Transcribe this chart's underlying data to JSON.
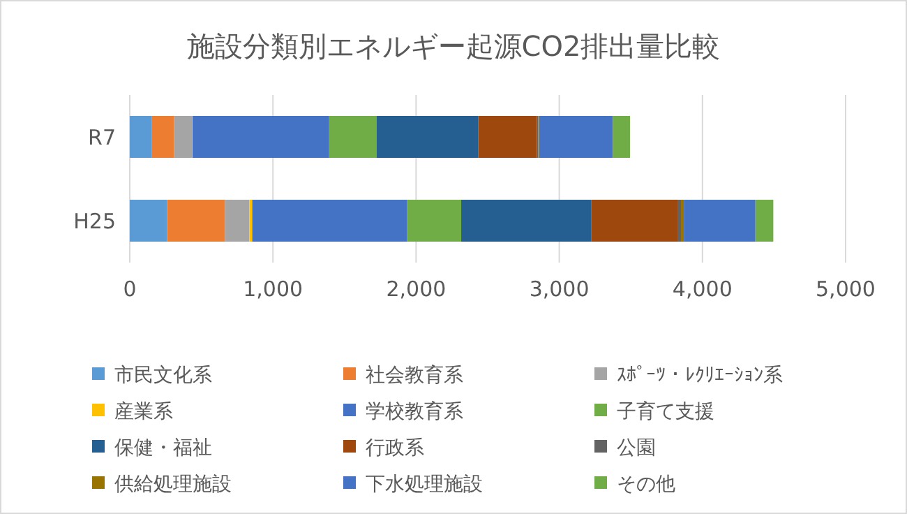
{
  "chart_data": {
    "type": "bar",
    "title": "施設分類別エネルギー起源CO2排出量比較",
    "orientation": "horizontal",
    "stacked": true,
    "categories": [
      "R7",
      "H25"
    ],
    "series": [
      {
        "name": "市民文化系",
        "color": "#5b9bd5",
        "values": [
          155,
          260
        ]
      },
      {
        "name": "社会教育系",
        "color": "#ed7d31",
        "values": [
          155,
          405
        ]
      },
      {
        "name": "ｽﾎﾟｰﾂ・ﾚｸﾘｴｰｼｮﾝ系",
        "color": "#a5a5a5",
        "values": [
          125,
          170
        ]
      },
      {
        "name": "産業系",
        "color": "#ffc000",
        "values": [
          3,
          20
        ]
      },
      {
        "name": "学校教育系",
        "color": "#4472c4",
        "values": [
          955,
          1080
        ]
      },
      {
        "name": "子育て支援",
        "color": "#70ad47",
        "values": [
          330,
          380
        ]
      },
      {
        "name": "保健・福祉",
        "color": "#255e91",
        "values": [
          710,
          910
        ]
      },
      {
        "name": "行政系",
        "color": "#9e480e",
        "values": [
          410,
          605
        ]
      },
      {
        "name": "公園",
        "color": "#636363",
        "values": [
          10,
          20
        ]
      },
      {
        "name": "供給処理施設",
        "color": "#997300",
        "values": [
          6,
          20
        ]
      },
      {
        "name": "下水処理施設",
        "color": "#4472c4",
        "values": [
          515,
          500
        ]
      },
      {
        "name": "その他",
        "color": "#70ad47",
        "values": [
          120,
          125
        ]
      }
    ],
    "xlim": [
      0,
      5000
    ],
    "xticks": [
      {
        "value": 0,
        "label": "0"
      },
      {
        "value": 1000,
        "label": "1,000"
      },
      {
        "value": 2000,
        "label": "2,000"
      },
      {
        "value": 3000,
        "label": "3,000"
      },
      {
        "value": 4000,
        "label": "4,000"
      },
      {
        "value": 5000,
        "label": "5,000"
      }
    ],
    "grid": "x",
    "legend": "bottom"
  }
}
